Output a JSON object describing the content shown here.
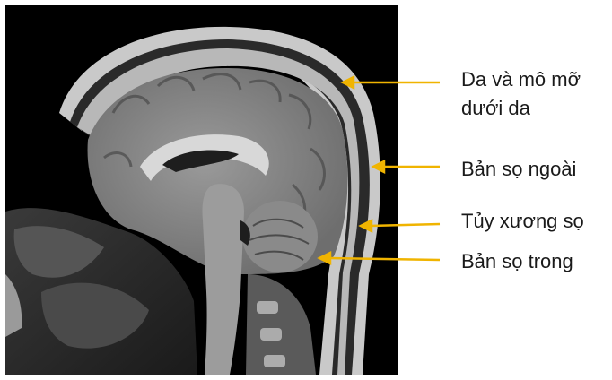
{
  "figure": {
    "image_alt": "Sagittal MRI of the head"
  },
  "labels": {
    "skin_line1": "Da và mô mỡ",
    "skin_line2": "dưới da",
    "outer_table": "Bản sọ ngoài",
    "marrow": "Tủy xương sọ",
    "inner_table": "Bản sọ trong"
  },
  "colors": {
    "arrow": "#f0b400",
    "background": "#000000",
    "text": "#1a1a1a"
  }
}
